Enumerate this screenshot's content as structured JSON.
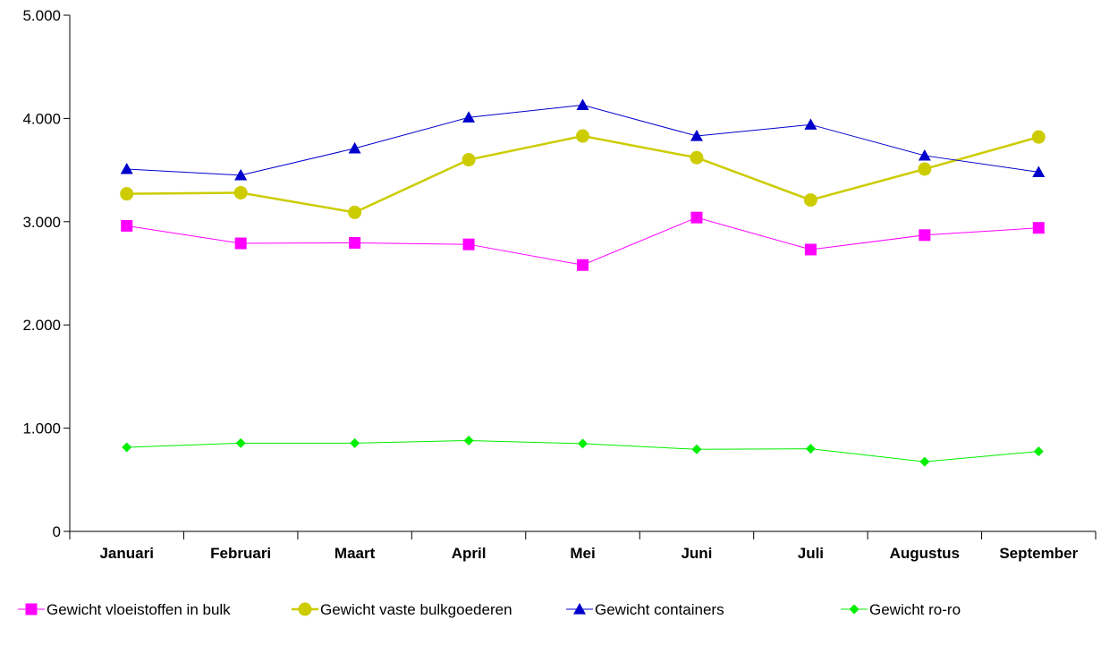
{
  "chart_data": {
    "type": "line",
    "categories": [
      "Januari",
      "Februari",
      "Maart",
      "April",
      "Mei",
      "Juni",
      "Juli",
      "Augustus",
      "September"
    ],
    "ylim": [
      0,
      5000
    ],
    "yticks": [
      0,
      1000,
      2000,
      3000,
      4000,
      5000
    ],
    "ytick_labels": [
      "0",
      "1.000",
      "2.000",
      "3.000",
      "4.000",
      "5.000"
    ],
    "grid": false,
    "legend_position": "bottom",
    "series": [
      {
        "name": "Gewicht vloeistoffen in bulk",
        "color": "#ff00ff",
        "marker": "square",
        "values": [
          2960,
          2790,
          2795,
          2780,
          2580,
          3040,
          2730,
          2870,
          2940
        ]
      },
      {
        "name": "Gewicht vaste bulkgoederen",
        "color": "#cccc00",
        "marker": "circle",
        "values": [
          3270,
          3280,
          3090,
          3600,
          3830,
          3620,
          3210,
          3510,
          3820
        ]
      },
      {
        "name": "Gewicht containers",
        "color": "#0000cc",
        "marker": "triangle",
        "values": [
          3510,
          3450,
          3710,
          4010,
          4130,
          3830,
          3940,
          3640,
          3480
        ]
      },
      {
        "name": "Gewicht ro-ro",
        "color": "#00ee00",
        "marker": "diamond",
        "values": [
          815,
          855,
          855,
          880,
          850,
          795,
          800,
          675,
          775
        ]
      }
    ]
  }
}
